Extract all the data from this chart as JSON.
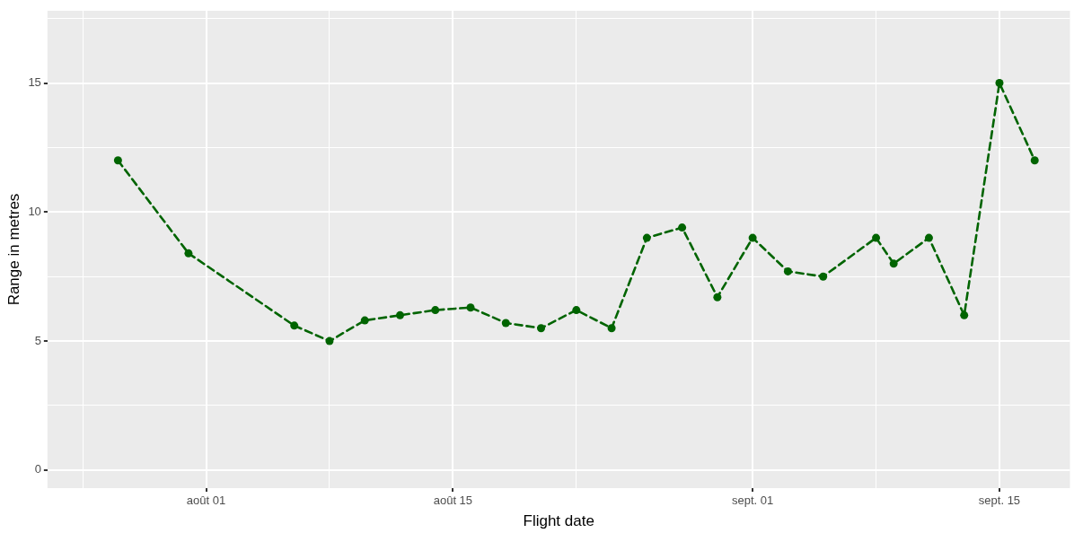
{
  "chart_data": {
    "type": "line",
    "xlabel": "Flight date",
    "ylabel": "Range in metres",
    "x": [
      "--07-27",
      "--07-31",
      "--08-06",
      "--08-08",
      "--08-10",
      "--08-12",
      "--08-14",
      "--08-16",
      "--08-18",
      "--08-20",
      "--08-22",
      "--08-24",
      "--08-26",
      "--08-28",
      "--08-30",
      "--09-01",
      "--09-03",
      "--09-05",
      "--09-08",
      "--09-09",
      "--09-11",
      "--09-13",
      "--09-15",
      "--09-17"
    ],
    "series": [
      {
        "color": "#006400",
        "values": [
          12,
          8.4,
          5.6,
          5.0,
          5.8,
          6.0,
          6.2,
          6.3,
          5.7,
          5.5,
          6.2,
          5.5,
          9.0,
          9.4,
          6.7,
          9.0,
          7.7,
          7.5,
          9.0,
          8.0,
          9.0,
          6.0,
          15,
          12
        ]
      }
    ],
    "xlim": [
      "--07-23",
      "--09-19"
    ],
    "xticks": [
      {
        "value": "--07-25",
        "label": null
      },
      {
        "value": "--08-01",
        "label": "août 01"
      },
      {
        "value": "--08-08",
        "label": null
      },
      {
        "value": "--08-15",
        "label": "août 15"
      },
      {
        "value": "--08-22",
        "label": null
      },
      {
        "value": "--09-01",
        "label": "sept. 01"
      },
      {
        "value": "--09-08",
        "label": null
      },
      {
        "value": "--09-15",
        "label": "sept. 15"
      }
    ],
    "ylim": [
      -0.7,
      17.8
    ],
    "yticks": [
      0,
      {
        "value": 2.5,
        "label": null
      },
      5,
      {
        "value": 7.5,
        "label": null
      },
      10,
      {
        "value": 12.5,
        "label": null
      },
      15,
      {
        "value": 17.5,
        "label": null
      }
    ],
    "grid": true,
    "legend": false,
    "marker": "circle",
    "line_style": "dashed"
  }
}
